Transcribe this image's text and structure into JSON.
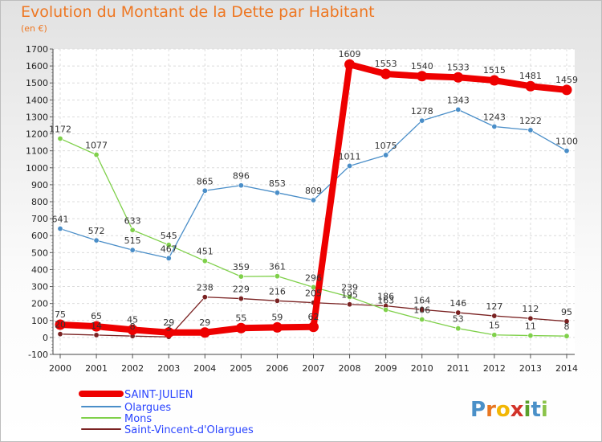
{
  "title": "Evolution du Montant de la Dette par Habitant",
  "unit": "(en €)",
  "brand": {
    "letters": [
      {
        "ch": "P",
        "color": "#4a90c8"
      },
      {
        "ch": "r",
        "color": "#e87722"
      },
      {
        "ch": "o",
        "color": "#f2b705"
      },
      {
        "ch": "x",
        "color": "#d2332a"
      },
      {
        "ch": "i",
        "color": "#5aa02c"
      },
      {
        "ch": "t",
        "color": "#4a90c8"
      },
      {
        "ch": "i",
        "color": "#8bc34a"
      }
    ]
  },
  "chart_data": {
    "type": "line",
    "title": "Evolution du Montant de la Dette par Habitant",
    "ylabel": "(en €)",
    "x": [
      "2000",
      "2001",
      "2002",
      "2003",
      "2004",
      "2005",
      "2006",
      "2007",
      "2008",
      "2009",
      "2010",
      "2011",
      "2012",
      "2013",
      "2014"
    ],
    "ylim": [
      -100,
      1700
    ],
    "yticks": [
      -100,
      0,
      100,
      200,
      300,
      400,
      500,
      600,
      700,
      800,
      900,
      1000,
      1100,
      1200,
      1300,
      1400,
      1500,
      1600,
      1700
    ],
    "grid": true,
    "legend_position": "bottom-left",
    "series": [
      {
        "name": "SAINT-JULIEN",
        "color": "#ee0000",
        "values": [
          75,
          65,
          45,
          29,
          29,
          55,
          59,
          62,
          1609,
          1553,
          1540,
          1533,
          1515,
          1481,
          1459
        ]
      },
      {
        "name": "Olargues",
        "color": "#4a8ec8",
        "values": [
          641,
          572,
          515,
          467,
          865,
          896,
          853,
          809,
          1011,
          1075,
          1278,
          1343,
          1243,
          1222,
          1100
        ]
      },
      {
        "name": "Mons",
        "color": "#7fd04a",
        "values": [
          1172,
          1077,
          633,
          545,
          451,
          359,
          361,
          296,
          239,
          163,
          106,
          53,
          15,
          11,
          8
        ]
      },
      {
        "name": "Saint-Vincent-d'Olargues",
        "color": "#7a2222",
        "values": [
          20,
          14,
          8,
          3,
          238,
          229,
          216,
          205,
          195,
          186,
          164,
          146,
          127,
          112,
          95
        ]
      }
    ]
  }
}
